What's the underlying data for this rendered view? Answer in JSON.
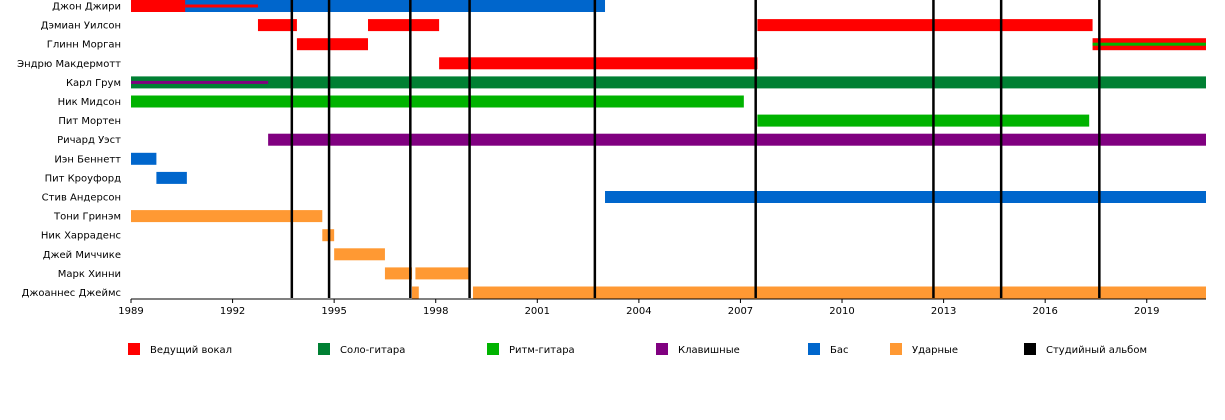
{
  "chart_data": {
    "type": "timeline",
    "x_range": [
      1989,
      2020.75
    ],
    "x_ticks": [
      "1989",
      "1992",
      "1995",
      "1998",
      "2001",
      "2004",
      "2007",
      "2010",
      "2013",
      "2016",
      "2019"
    ],
    "tick_values": [
      1989,
      1992,
      1995,
      1998,
      2001,
      2004,
      2007,
      2010,
      2013,
      2016,
      2019
    ],
    "roles": {
      "vocal": {
        "label": "Ведущий вокал",
        "color": "#ff0000"
      },
      "lead_guitar": {
        "label": "Соло-гитара",
        "color": "#008033"
      },
      "rhythm_guitar": {
        "label": "Ритм-гитара",
        "color": "#00b300"
      },
      "keys": {
        "label": "Клавишные",
        "color": "#800080"
      },
      "bass": {
        "label": "Бас",
        "color": "#0066cc"
      },
      "drums": {
        "label": "Ударные",
        "color": "#ff9933"
      },
      "album": {
        "label": "Студийный альбом",
        "color": "#000000"
      }
    },
    "albums": [
      1993.75,
      1994.85,
      1997.25,
      1999.0,
      2002.7,
      2007.45,
      2012.7,
      2014.7,
      2017.6
    ],
    "members": [
      {
        "name": "Джон Джири",
        "bars": [
          {
            "role": "bass",
            "start": 1989.0,
            "end": 2003.0
          },
          {
            "role": "vocal",
            "start": 1989.0,
            "end": 1990.6
          },
          {
            "role": "vocal",
            "start": 1990.6,
            "end": 1992.75,
            "thin": true
          }
        ]
      },
      {
        "name": "Дэмиан Уилсон",
        "bars": [
          {
            "role": "vocal",
            "start": 1992.75,
            "end": 1993.9
          },
          {
            "role": "vocal",
            "start": 1996.0,
            "end": 1998.1
          },
          {
            "role": "vocal",
            "start": 2007.5,
            "end": 2017.4
          }
        ]
      },
      {
        "name": "Глинн Морган",
        "bars": [
          {
            "role": "vocal",
            "start": 1993.9,
            "end": 1996.0
          },
          {
            "role": "vocal",
            "start": 2017.4,
            "end": 2020.75,
            "inner": "rhythm_guitar"
          }
        ]
      },
      {
        "name": "Эндрю Макдермотт",
        "bars": [
          {
            "role": "vocal",
            "start": 1998.1,
            "end": 2007.5
          }
        ]
      },
      {
        "name": "Карл Грум",
        "bars": [
          {
            "role": "lead_guitar",
            "start": 1989.0,
            "end": 2020.75
          },
          {
            "role": "keys",
            "start": 1989.0,
            "end": 1993.05,
            "thin": true
          }
        ]
      },
      {
        "name": "Ник Мидсон",
        "bars": [
          {
            "role": "rhythm_guitar",
            "start": 1989.0,
            "end": 2007.1
          }
        ]
      },
      {
        "name": "Пит Мортен",
        "bars": [
          {
            "role": "rhythm_guitar",
            "start": 2007.5,
            "end": 2017.3
          }
        ]
      },
      {
        "name": "Ричард Уэст",
        "bars": [
          {
            "role": "keys",
            "start": 1993.05,
            "end": 2020.75
          }
        ]
      },
      {
        "name": "Иэн Беннетт",
        "bars": [
          {
            "role": "bass",
            "start": 1989.0,
            "end": 1989.75
          }
        ]
      },
      {
        "name": "Пит Кроуфорд",
        "bars": [
          {
            "role": "bass",
            "start": 1989.75,
            "end": 1990.65
          }
        ]
      },
      {
        "name": "Стив Андерсон",
        "bars": [
          {
            "role": "bass",
            "start": 2003.0,
            "end": 2020.75
          }
        ]
      },
      {
        "name": "Тони Гринэм",
        "bars": [
          {
            "role": "drums",
            "start": 1989.0,
            "end": 1994.65
          }
        ]
      },
      {
        "name": "Ник Харраденс",
        "bars": [
          {
            "role": "drums",
            "start": 1994.65,
            "end": 1995.0
          }
        ]
      },
      {
        "name": "Джей Миччике",
        "bars": [
          {
            "role": "drums",
            "start": 1995.0,
            "end": 1996.5
          }
        ]
      },
      {
        "name": "Марк Хинни",
        "bars": [
          {
            "role": "drums",
            "start": 1996.5,
            "end": 1997.3
          },
          {
            "role": "drums",
            "start": 1997.4,
            "end": 1999.0
          }
        ]
      },
      {
        "name": "Джоаннес Джеймс",
        "bars": [
          {
            "role": "drums",
            "start": 1997.3,
            "end": 1997.5
          },
          {
            "role": "drums",
            "start": 1999.1,
            "end": 2020.75
          }
        ]
      }
    ],
    "legend_order": [
      "vocal",
      "lead_guitar",
      "rhythm_guitar",
      "keys",
      "bass",
      "drums",
      "album"
    ]
  }
}
